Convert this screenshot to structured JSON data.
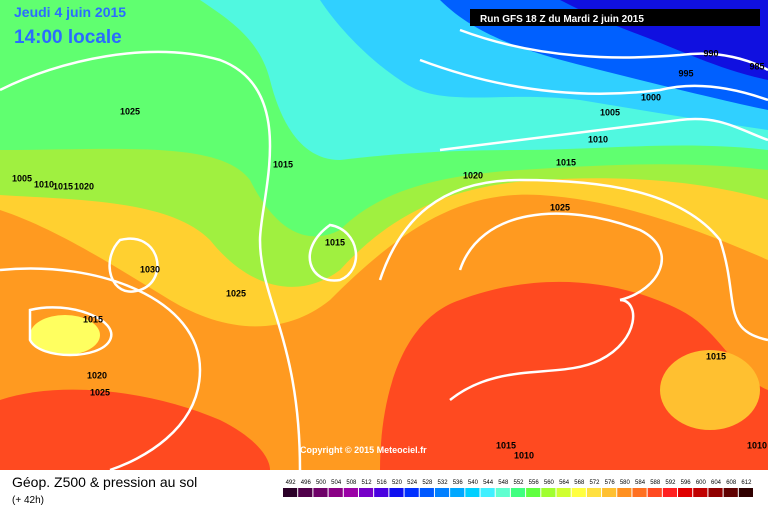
{
  "header": {
    "date": "Jeudi 4 juin 2015",
    "time": "14:00 locale",
    "run": "Run GFS 18 Z du Mardi 2 juin 2015"
  },
  "isobars": [
    "1025",
    "1015",
    "1005",
    "1010",
    "1015",
    "1020",
    "1030",
    "1025",
    "1015",
    "1020",
    "1025",
    "1015",
    "1020",
    "1025",
    "1015",
    "1010",
    "1005",
    "1000",
    "995",
    "990",
    "985",
    "1015",
    "1015",
    "1010",
    "1010"
  ],
  "copyright": "Copyright © 2015 Meteociel.fr",
  "legend": {
    "title": "Géop. Z500 & pression au sol",
    "lead": "(+ 42h)",
    "scale": [
      {
        "label": "492",
        "color": "#2b0028"
      },
      {
        "label": "496",
        "color": "#50004a"
      },
      {
        "label": "500",
        "color": "#6e0068"
      },
      {
        "label": "504",
        "color": "#8a0085"
      },
      {
        "label": "508",
        "color": "#9a00a6"
      },
      {
        "label": "512",
        "color": "#7700c8"
      },
      {
        "label": "516",
        "color": "#4a00e0"
      },
      {
        "label": "520",
        "color": "#1010f0"
      },
      {
        "label": "524",
        "color": "#0030ff"
      },
      {
        "label": "528",
        "color": "#0058ff"
      },
      {
        "label": "532",
        "color": "#0080ff"
      },
      {
        "label": "536",
        "color": "#00a8ff"
      },
      {
        "label": "540",
        "color": "#00d0ff"
      },
      {
        "label": "544",
        "color": "#40f0ff"
      },
      {
        "label": "548",
        "color": "#60ffd0"
      },
      {
        "label": "552",
        "color": "#40ff80"
      },
      {
        "label": "556",
        "color": "#60ff40"
      },
      {
        "label": "560",
        "color": "#a0ff30"
      },
      {
        "label": "564",
        "color": "#d0ff30"
      },
      {
        "label": "568",
        "color": "#ffff40"
      },
      {
        "label": "572",
        "color": "#ffe040"
      },
      {
        "label": "576",
        "color": "#ffc030"
      },
      {
        "label": "580",
        "color": "#ff9020"
      },
      {
        "label": "584",
        "color": "#ff7020"
      },
      {
        "label": "588",
        "color": "#ff4a20"
      },
      {
        "label": "592",
        "color": "#ff2020"
      },
      {
        "label": "596",
        "color": "#e00000"
      },
      {
        "label": "600",
        "color": "#c00000"
      },
      {
        "label": "604",
        "color": "#900000"
      },
      {
        "label": "608",
        "color": "#600000"
      },
      {
        "label": "612",
        "color": "#300000"
      }
    ]
  }
}
